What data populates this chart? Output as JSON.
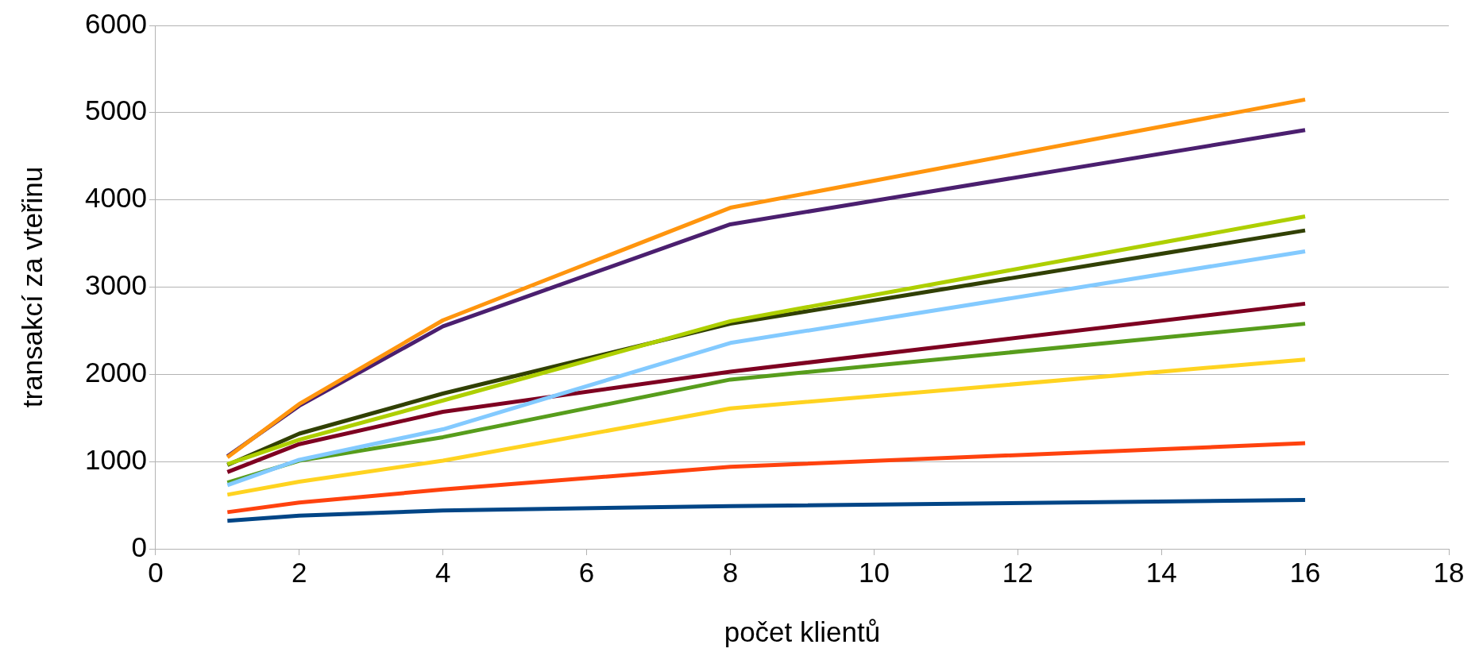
{
  "chart_data": {
    "type": "line",
    "xlabel": "počet klientů",
    "ylabel": "transakcí za vteřinu",
    "x": [
      1,
      2,
      4,
      8,
      16
    ],
    "series": [
      {
        "color": "#ff950e",
        "values": [
          1050,
          1660,
          2620,
          3910,
          5150
        ]
      },
      {
        "color": "#4b1f6f",
        "values": [
          1060,
          1640,
          2550,
          3720,
          4800
        ]
      },
      {
        "color": "#aecf00",
        "values": [
          970,
          1250,
          1700,
          2610,
          3810
        ]
      },
      {
        "color": "#314004",
        "values": [
          960,
          1320,
          1780,
          2580,
          3650
        ]
      },
      {
        "color": "#83caff",
        "values": [
          730,
          1020,
          1370,
          2360,
          3410
        ]
      },
      {
        "color": "#7e0021",
        "values": [
          880,
          1200,
          1570,
          2030,
          2810
        ]
      },
      {
        "color": "#579d1c",
        "values": [
          760,
          1010,
          1280,
          1940,
          2580
        ]
      },
      {
        "color": "#ffd320",
        "values": [
          620,
          770,
          1010,
          1610,
          2170
        ]
      },
      {
        "color": "#ff420e",
        "values": [
          420,
          530,
          680,
          940,
          1210
        ]
      },
      {
        "color": "#004586",
        "values": [
          320,
          380,
          440,
          490,
          560
        ]
      }
    ],
    "xlim": [
      0,
      18
    ],
    "xticks": [
      0,
      2,
      4,
      6,
      8,
      10,
      12,
      14,
      16,
      18
    ],
    "ylim": [
      0,
      6000
    ],
    "yticks": [
      0,
      1000,
      2000,
      3000,
      4000,
      5000,
      6000
    ],
    "grid": "y",
    "legend": false,
    "marker": "none",
    "line_style": "solid"
  }
}
